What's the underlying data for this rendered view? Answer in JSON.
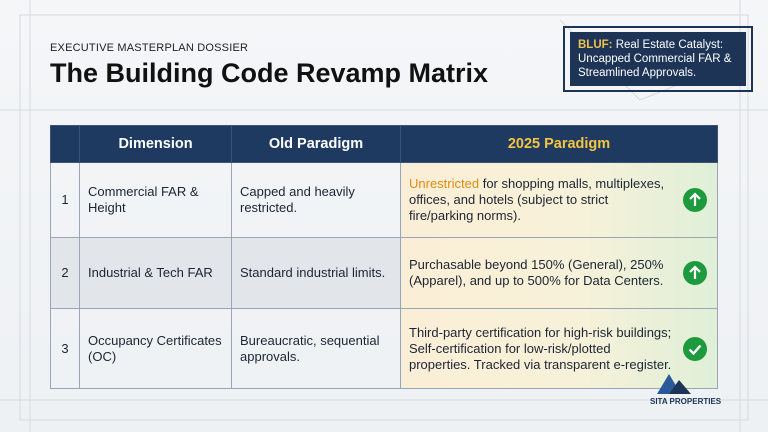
{
  "header": {
    "kicker": "EXECUTIVE MASTERPLAN DOSSIER",
    "title": "The Building Code Revamp Matrix"
  },
  "bluf": {
    "label": "BLUF:",
    "text": "Real Estate Catalyst: Uncapped Commercial FAR & Streamlined Approvals."
  },
  "table": {
    "headers": [
      "Dimension",
      "Old Paradigm",
      "2025 Paradigm"
    ],
    "rows": [
      {
        "number": "1",
        "dimension": "Commercial FAR & Height",
        "old": "Capped and heavily restricted.",
        "new_highlight": "Unrestricted",
        "new": "for shopping malls, multiplexes, offices, and hotels (subject to strict fire/parking norms)."
      },
      {
        "number": "2",
        "dimension": "Industrial & Tech FAR",
        "old": "Standard industrial limits.",
        "new": "Purchasable beyond 150% (General), 250% (Apparel), and up to 500% for Data Centers."
      },
      {
        "number": "3",
        "dimension": "Occupancy Certificates (OC)",
        "old": "Bureaucratic, sequential approvals.",
        "new": "Third-party certification for high-risk buildings; Self-certification for low-risk/plotted properties. Tracked via transparent e-register."
      }
    ]
  },
  "logo": {
    "name": "SITA PROPERTIES"
  }
}
